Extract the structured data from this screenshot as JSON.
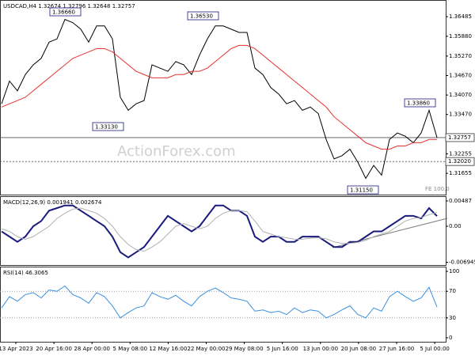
{
  "chart_data": [
    {
      "type": "line",
      "title": "USDCAD,H4 1.32674 1.32796 1.32648 1.32757",
      "watermark": "ActionForex.com",
      "ylim": [
        1.31,
        1.3695
      ],
      "yticks": [
        {
          "value": 1.36485,
          "label": "1.36485"
        },
        {
          "value": 1.3588,
          "label": "1.35880"
        },
        {
          "value": 1.3527,
          "label": "1.35270"
        },
        {
          "value": 1.3467,
          "label": "1.34670"
        },
        {
          "value": 1.3407,
          "label": "1.34070"
        },
        {
          "value": 1.3347,
          "label": "1.33470"
        },
        {
          "value": 1.32255,
          "label": "1.32255"
        },
        {
          "value": 1.31655,
          "label": "1.31655"
        }
      ],
      "hlines": [
        {
          "value": 1.32757,
          "label": "1.32757"
        },
        {
          "value": 1.3202,
          "label": "1.32020"
        }
      ],
      "annotations": [
        "1.36660",
        "1.36530",
        "1.33130",
        "1.33860",
        "1.31150",
        "FE 100.0"
      ],
      "series": [
        {
          "color": "#000000",
          "values": [
            1.338,
            1.345,
            1.342,
            1.347,
            1.35,
            1.352,
            1.357,
            1.358,
            1.364,
            1.363,
            1.361,
            1.357,
            1.362,
            1.362,
            1.358,
            1.34,
            1.336,
            1.338,
            1.339,
            1.35,
            1.349,
            1.348,
            1.351,
            1.35,
            1.347,
            1.353,
            1.358,
            1.362,
            1.362,
            1.361,
            1.36,
            1.36,
            1.349,
            1.347,
            1.343,
            1.341,
            1.338,
            1.339,
            1.336,
            1.337,
            1.335,
            1.327,
            1.321,
            1.322,
            1.324,
            1.32,
            1.315,
            1.319,
            1.316,
            1.327,
            1.329,
            1.328,
            1.326,
            1.329,
            1.336,
            1.32757
          ]
        },
        {
          "color": "#e8322e",
          "values": [
            1.337,
            1.338,
            1.339,
            1.34,
            1.342,
            1.344,
            1.346,
            1.348,
            1.35,
            1.352,
            1.353,
            1.354,
            1.355,
            1.355,
            1.354,
            1.352,
            1.35,
            1.348,
            1.347,
            1.346,
            1.346,
            1.346,
            1.347,
            1.347,
            1.348,
            1.348,
            1.349,
            1.351,
            1.353,
            1.355,
            1.356,
            1.356,
            1.355,
            1.353,
            1.351,
            1.349,
            1.347,
            1.345,
            1.343,
            1.341,
            1.339,
            1.337,
            1.334,
            1.332,
            1.33,
            1.328,
            1.326,
            1.325,
            1.324,
            1.324,
            1.325,
            1.325,
            1.326,
            1.326,
            1.327,
            1.327
          ]
        }
      ]
    },
    {
      "type": "line",
      "title": "MACD(12,26,9) 0.001941 0.002674",
      "ylim": [
        -0.00746,
        0.00563
      ],
      "yticks": [
        0.00487,
        {
          "value": 0,
          "label": "0.00"
        },
        -0.006945
      ],
      "series": [
        {
          "color": "#1a1a7e",
          "width": 2,
          "values": [
            -0.001,
            -0.002,
            -0.003,
            -0.002,
            0.0,
            0.001,
            0.003,
            0.0035,
            0.004,
            0.004,
            0.003,
            0.002,
            0.001,
            0.0,
            -0.002,
            -0.005,
            -0.006,
            -0.005,
            -0.004,
            -0.002,
            0.0,
            0.002,
            0.001,
            0.0,
            -0.001,
            0.0,
            0.002,
            0.004,
            0.004,
            0.003,
            0.003,
            0.002,
            -0.002,
            -0.003,
            -0.002,
            -0.002,
            -0.003,
            -0.003,
            -0.002,
            -0.002,
            -0.002,
            -0.003,
            -0.004,
            -0.004,
            -0.003,
            -0.003,
            -0.002,
            -0.001,
            -0.001,
            0.0,
            0.001,
            0.002,
            0.002,
            0.0015,
            0.0035,
            0.001941
          ]
        },
        {
          "color": "#b0b0b0",
          "width": 1,
          "values": [
            -0.0005,
            -0.001,
            -0.002,
            -0.0025,
            -0.002,
            -0.001,
            0.0,
            0.0015,
            0.0025,
            0.0033,
            0.0035,
            0.003,
            0.0025,
            0.0015,
            0.0,
            -0.002,
            -0.0035,
            -0.0045,
            -0.0048,
            -0.004,
            -0.003,
            -0.0015,
            0.0,
            0.0005,
            0.0,
            -0.0005,
            0.0,
            0.0015,
            0.0025,
            0.003,
            0.003,
            0.0028,
            0.001,
            -0.001,
            -0.0015,
            -0.002,
            -0.0022,
            -0.0025,
            -0.0025,
            -0.0023,
            -0.0022,
            -0.0024,
            -0.003,
            -0.0033,
            -0.0033,
            -0.0031,
            -0.0027,
            -0.002,
            -0.0015,
            -0.001,
            0.0,
            0.001,
            0.0015,
            0.0017,
            0.0022,
            0.002674
          ]
        }
      ]
    },
    {
      "type": "line",
      "title": "RSI(14) 46.3065",
      "ylim": [
        -6,
        106
      ],
      "yticks": [
        100,
        70,
        30,
        0
      ],
      "dotted_levels": [
        70,
        30
      ],
      "series": [
        {
          "color": "#3a8fe0",
          "width": 1,
          "values": [
            45,
            62,
            55,
            65,
            68,
            60,
            72,
            70,
            78,
            65,
            60,
            52,
            68,
            62,
            48,
            30,
            38,
            45,
            48,
            68,
            62,
            58,
            64,
            55,
            48,
            62,
            70,
            75,
            68,
            60,
            58,
            55,
            40,
            42,
            38,
            40,
            35,
            45,
            38,
            42,
            40,
            30,
            35,
            42,
            48,
            35,
            30,
            45,
            40,
            62,
            70,
            62,
            55,
            60,
            76,
            46.3065
          ]
        }
      ],
      "xtick_labels": [
        "13 Apr 2023",
        "20 Apr 16:00",
        "28 Apr 00:00",
        "5 May 08:00",
        "12 May 16:00",
        "22 May 00:00",
        "29 May 08:00",
        "5 Jun 16:00",
        "13 Jun 00:00",
        "20 Jun 08:00",
        "27 Jun 16:00",
        "5 Jul 00:00"
      ]
    }
  ]
}
